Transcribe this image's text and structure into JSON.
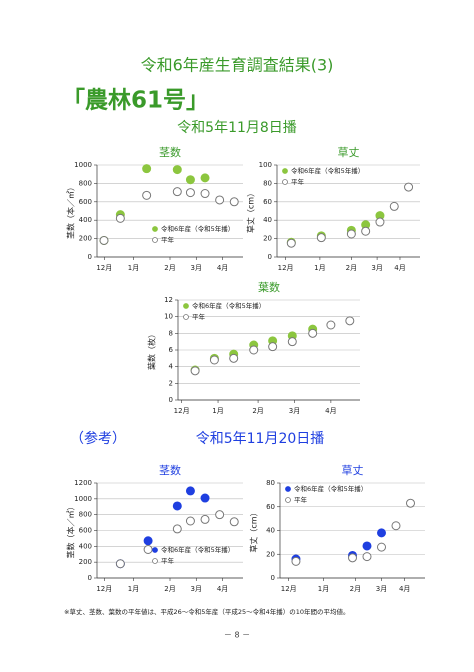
{
  "header": {
    "title": "令和6年産生育調査結果(3)",
    "variety": "「農林61号」"
  },
  "sections": {
    "main": "令和5年11月8日播",
    "reference": "（参考）",
    "reference_date": "令和5年11月20日播"
  },
  "chart_data": [
    {
      "type": "scatter",
      "title": "茎数",
      "y_label": "茎数（本／㎡）",
      "xlim": [
        0,
        5
      ],
      "xticks": [
        {
          "value": 0.25,
          "label": "12月"
        },
        {
          "value": 1.25,
          "label": "1月"
        },
        {
          "value": 2.5,
          "label": "2月"
        },
        {
          "value": 3.4,
          "label": "3月"
        },
        {
          "value": 4.3,
          "label": "4月"
        }
      ],
      "ylim": [
        0,
        1000
      ],
      "yticks": [
        0,
        200,
        400,
        600,
        800,
        1000
      ],
      "grid": true,
      "legend": "lower-right",
      "series": [
        {
          "name": "令和6年産（令和5年播）",
          "color": "#8cc63f",
          "filled": true,
          "x": [
            0.24,
            0.8,
            1.7,
            2.75,
            3.2,
            3.7
          ],
          "values": [
            180,
            460,
            960,
            950,
            840,
            860
          ]
        },
        {
          "name": "平年",
          "color": "#777777",
          "filled": false,
          "x": [
            0.24,
            0.8,
            1.7,
            2.75,
            3.2,
            3.7,
            4.2,
            4.7
          ],
          "values": [
            180,
            420,
            670,
            710,
            700,
            690,
            620,
            600
          ]
        }
      ]
    },
    {
      "type": "scatter",
      "title": "草丈",
      "y_label": "草丈（cm）",
      "xlim": [
        0,
        5
      ],
      "xticks": [
        {
          "value": 0.3,
          "label": "12月"
        },
        {
          "value": 1.5,
          "label": "1月"
        },
        {
          "value": 2.6,
          "label": "2月"
        },
        {
          "value": 3.5,
          "label": "3月"
        },
        {
          "value": 4.3,
          "label": "4月"
        }
      ],
      "ylim": [
        0,
        100
      ],
      "yticks": [
        0,
        20,
        40,
        60,
        80,
        100
      ],
      "grid": true,
      "legend": "upper-left",
      "series": [
        {
          "name": "令和6年産（令和5年播）",
          "color": "#8cc63f",
          "filled": true,
          "x": [
            0.5,
            1.55,
            2.6,
            3.1,
            3.6
          ],
          "values": [
            16,
            23,
            29,
            35,
            45
          ]
        },
        {
          "name": "平年",
          "color": "#777777",
          "filled": false,
          "x": [
            0.5,
            1.55,
            2.6,
            3.1,
            3.6,
            4.1,
            4.6
          ],
          "values": [
            15,
            21,
            25,
            28,
            38,
            55,
            76
          ]
        }
      ]
    },
    {
      "type": "scatter",
      "title": "葉数",
      "y_label": "葉数（枚）",
      "xlim": [
        0,
        5
      ],
      "xticks": [
        {
          "value": 0.1,
          "label": "12月"
        },
        {
          "value": 1.1,
          "label": "1月"
        },
        {
          "value": 2.2,
          "label": "2月"
        },
        {
          "value": 3.2,
          "label": "3月"
        },
        {
          "value": 4.2,
          "label": "4月"
        }
      ],
      "ylim": [
        0,
        12
      ],
      "yticks": [
        0,
        2,
        4,
        6,
        8,
        10,
        12
      ],
      "grid": true,
      "legend": "upper-left",
      "series": [
        {
          "name": "令和6年産（令和5年播）",
          "color": "#8cc63f",
          "filled": true,
          "x": [
            0.47,
            1.0,
            1.53,
            2.08,
            2.6,
            3.14,
            3.7
          ],
          "values": [
            3.6,
            5.0,
            5.5,
            6.6,
            7.1,
            7.7,
            8.5
          ]
        },
        {
          "name": "平年",
          "color": "#777777",
          "filled": false,
          "x": [
            0.47,
            1.0,
            1.53,
            2.08,
            2.6,
            3.14,
            3.7,
            4.2,
            4.72
          ],
          "values": [
            3.5,
            4.8,
            5.0,
            6.0,
            6.4,
            7.0,
            8.0,
            9.0,
            9.5
          ]
        }
      ]
    },
    {
      "type": "scatter",
      "title": "茎数",
      "y_label": "茎数（本／㎡）",
      "xlim": [
        0,
        5
      ],
      "xticks": [
        {
          "value": 0.25,
          "label": "12月"
        },
        {
          "value": 1.25,
          "label": "1月"
        },
        {
          "value": 2.5,
          "label": "2月"
        },
        {
          "value": 3.4,
          "label": "3月"
        },
        {
          "value": 4.3,
          "label": "4月"
        }
      ],
      "ylim": [
        0,
        1200
      ],
      "yticks": [
        0,
        200,
        400,
        600,
        800,
        1000,
        1200
      ],
      "grid": true,
      "legend": "lower-right",
      "series": [
        {
          "name": "令和6年産（令和5年播）",
          "color": "#1f3fe0",
          "filled": true,
          "x": [
            0.8,
            1.75,
            2.75,
            3.2,
            3.7
          ],
          "values": [
            180,
            470,
            910,
            1100,
            1010
          ]
        },
        {
          "name": "平年",
          "color": "#777777",
          "filled": false,
          "x": [
            0.8,
            1.75,
            2.75,
            3.2,
            3.7,
            4.2,
            4.7
          ],
          "values": [
            180,
            360,
            620,
            720,
            740,
            800,
            710
          ]
        }
      ]
    },
    {
      "type": "scatter",
      "title": "草丈",
      "y_label": "草丈（cm）",
      "xlim": [
        0,
        5
      ],
      "xticks": [
        {
          "value": 0.3,
          "label": "12月"
        },
        {
          "value": 1.5,
          "label": "1月"
        },
        {
          "value": 2.6,
          "label": "2月"
        },
        {
          "value": 3.5,
          "label": "3月"
        },
        {
          "value": 4.3,
          "label": "4月"
        }
      ],
      "ylim": [
        0,
        80
      ],
      "yticks": [
        0,
        20,
        40,
        60,
        80
      ],
      "grid": true,
      "legend": "upper-left",
      "series": [
        {
          "name": "令和6年産（令和5年播）",
          "color": "#1f3fe0",
          "filled": true,
          "x": [
            0.55,
            2.5,
            3.0,
            3.5
          ],
          "values": [
            16,
            19,
            27,
            38
          ]
        },
        {
          "name": "平年",
          "color": "#777777",
          "filled": false,
          "x": [
            0.55,
            2.5,
            3.0,
            3.5,
            4.0,
            4.5
          ],
          "values": [
            14,
            17,
            18,
            26,
            44,
            63
          ]
        }
      ]
    }
  ],
  "footnote": "※草丈、茎数、葉数の平年値は、平成26～令和5年産（平成25～令和4年播）の10年間の平均値。",
  "page_number": "－ 8 －"
}
